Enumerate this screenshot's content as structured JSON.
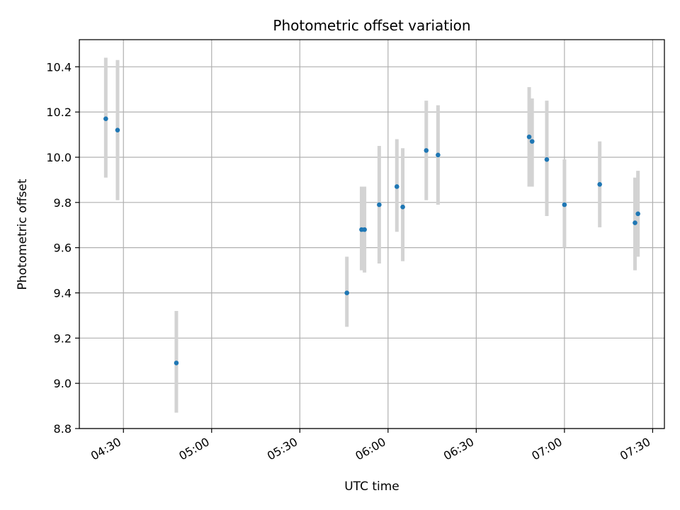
{
  "chart_data": {
    "type": "scatter",
    "title": "Photometric offset variation",
    "xlabel": "UTC time",
    "ylabel": "Photometric offset",
    "x_ticks": [
      "04:30",
      "05:00",
      "05:30",
      "06:00",
      "06:30",
      "07:00",
      "07:30"
    ],
    "y_ticks": [
      "8.8",
      "9.0",
      "9.2",
      "9.4",
      "9.6",
      "9.8",
      "10.0",
      "10.2",
      "10.4"
    ],
    "xlim": [
      "04:15",
      "07:34"
    ],
    "ylim": [
      8.8,
      10.52
    ],
    "grid": true,
    "colors": {
      "point": "#1f77b4",
      "errorbar": "#d3d3d3",
      "grid": "#b0b0b0"
    },
    "series": [
      {
        "points": [
          {
            "x": "04:24",
            "y": 10.17,
            "err_low": 9.91,
            "err_high": 10.44
          },
          {
            "x": "04:28",
            "y": 10.12,
            "err_low": 9.81,
            "err_high": 10.43
          },
          {
            "x": "04:48",
            "y": 9.09,
            "err_low": 8.87,
            "err_high": 9.32
          },
          {
            "x": "05:46",
            "y": 9.4,
            "err_low": 9.25,
            "err_high": 9.56
          },
          {
            "x": "05:51",
            "y": 9.68,
            "err_low": 9.5,
            "err_high": 9.87
          },
          {
            "x": "05:52",
            "y": 9.68,
            "err_low": 9.49,
            "err_high": 9.87
          },
          {
            "x": "05:57",
            "y": 9.79,
            "err_low": 9.53,
            "err_high": 10.05
          },
          {
            "x": "06:03",
            "y": 9.87,
            "err_low": 9.67,
            "err_high": 10.08
          },
          {
            "x": "06:05",
            "y": 9.78,
            "err_low": 9.54,
            "err_high": 10.04
          },
          {
            "x": "06:13",
            "y": 10.03,
            "err_low": 9.81,
            "err_high": 10.25
          },
          {
            "x": "06:17",
            "y": 10.01,
            "err_low": 9.79,
            "err_high": 10.23
          },
          {
            "x": "06:48",
            "y": 10.09,
            "err_low": 9.87,
            "err_high": 10.31
          },
          {
            "x": "06:49",
            "y": 10.07,
            "err_low": 9.87,
            "err_high": 10.26
          },
          {
            "x": "06:54",
            "y": 9.99,
            "err_low": 9.74,
            "err_high": 10.25
          },
          {
            "x": "07:00",
            "y": 9.79,
            "err_low": 9.6,
            "err_high": 9.99
          },
          {
            "x": "07:12",
            "y": 9.88,
            "err_low": 9.69,
            "err_high": 10.07
          },
          {
            "x": "07:24",
            "y": 9.71,
            "err_low": 9.5,
            "err_high": 9.91
          },
          {
            "x": "07:25",
            "y": 9.75,
            "err_low": 9.56,
            "err_high": 9.94
          }
        ]
      }
    ]
  }
}
